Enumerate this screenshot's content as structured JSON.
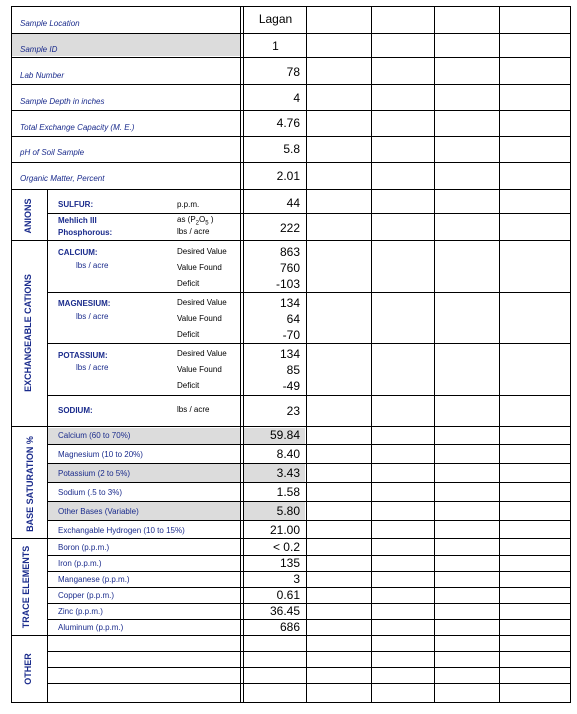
{
  "header": {
    "sample_location_label": "Sample Location",
    "sample_location_value": "Lagan",
    "sample_id_label": "Sample ID",
    "sample_id_value": "1",
    "lab_number_label": "Lab Number",
    "lab_number_value": "78",
    "sample_depth_label": "Sample Depth in inches",
    "sample_depth_value": "4",
    "tec_label": "Total Exchange Capacity (M. E.)",
    "tec_value": "4.76",
    "ph_label": "pH of Soil Sample",
    "ph_value": "5.8",
    "organic_label": "Organic Matter, Percent",
    "organic_value": "2.01"
  },
  "anions": {
    "section_label": "ANIONS",
    "sulfur_label": "SULFUR:",
    "sulfur_unit": "p.p.m.",
    "sulfur_value": "44",
    "mehlich_label": "Mehlich III",
    "phosphorous_label": "Phosphorous:",
    "phosphorous_unit_1": "as (P",
    "phosphorous_sub_2": "2",
    "phosphorous_unit_o": "O",
    "phosphorous_sub_5": "5",
    "phosphorous_unit_close": " )",
    "phosphorous_unit_2": "lbs / acre",
    "phosphorous_value": "222"
  },
  "cations": {
    "section_label": "EXCHANGEABLE CATIONS",
    "desired_label": "Desired Value",
    "found_label": "Value Found",
    "deficit_label": "Deficit",
    "unit": "lbs / acre",
    "calcium": {
      "label": "CALCIUM:",
      "desired": "863",
      "found": "760",
      "deficit": "-103"
    },
    "magnesium": {
      "label": "MAGNESIUM:",
      "desired": "134",
      "found": "64",
      "deficit": "-70"
    },
    "potassium": {
      "label": "POTASSIUM:",
      "desired": "134",
      "found": "85",
      "deficit": "-49"
    },
    "sodium": {
      "label": "SODIUM:",
      "unit": "lbs / acre",
      "value": "23"
    }
  },
  "base_saturation": {
    "section_label": "BASE SATURATION %",
    "rows": [
      {
        "label": "Calcium (60 to 70%)",
        "value": "59.84"
      },
      {
        "label": "Magnesium (10 to 20%)",
        "value": "8.40"
      },
      {
        "label": "Potassium (2 to 5%)",
        "value": "3.43"
      },
      {
        "label": "Sodium (.5 to 3%)",
        "value": "1.58"
      },
      {
        "label": "Other Bases (Variable)",
        "value": "5.80"
      },
      {
        "label": "Exchangable Hydrogen (10 to 15%)",
        "value": "21.00"
      }
    ]
  },
  "trace_elements": {
    "section_label": "TRACE ELEMENTS",
    "rows": [
      {
        "label": "Boron (p.p.m.)",
        "value": "< 0.2"
      },
      {
        "label": "Iron (p.p.m.)",
        "value": "135"
      },
      {
        "label": "Manganese (p.p.m.)",
        "value": "3"
      },
      {
        "label": "Copper (p.p.m.)",
        "value": "0.61"
      },
      {
        "label": "Zinc (p.p.m.)",
        "value": "36.45"
      },
      {
        "label": "Aluminum (p.p.m.)",
        "value": "686"
      }
    ]
  },
  "other": {
    "section_label": "OTHER"
  }
}
